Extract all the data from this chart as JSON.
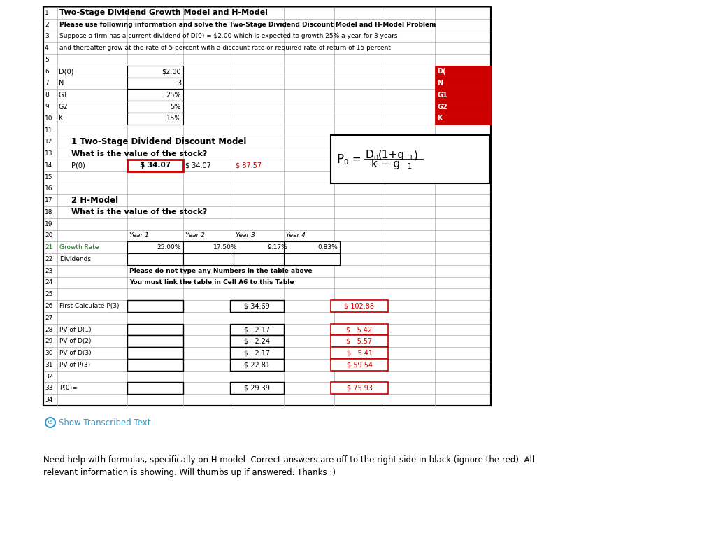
{
  "bg_color": "#ffffff",
  "title_row1": "Two-Stage Dividend Growth Model and H-Model",
  "title_row2": "Please use following information and solve the Two-Stage Dividend Discount Model and H-Model Problem",
  "title_row3": "Suppose a firm has a current dividend of D(0) = $2.00 which is expected to growth 25% a year for 3 years",
  "title_row4": "and thereafter grow at the rate of 5 percent with a discount rate or required rate of return of 15 percent",
  "param_rows": [
    {
      "label": "D(0)",
      "val": "$2.00"
    },
    {
      "label": "N",
      "val": "3"
    },
    {
      "label": "G1",
      "val": "25%"
    },
    {
      "label": "G2",
      "val": "5%"
    },
    {
      "label": "K",
      "val": "15%"
    }
  ],
  "right_labels": [
    "D(",
    "N",
    "G1",
    "G2",
    "K"
  ],
  "section1_title": "1 Two-Stage Dividend Discount Model",
  "section1_q": "What is the value of the stock?",
  "P0_label": "P(0)",
  "P0_val1": "$ 34.07",
  "P0_val2": "$ 34.07",
  "P0_val3": "$ 87.57",
  "section2_title": "2 H-Model",
  "section2_q": "What is the value of the stock?",
  "year_headers": [
    "Year 1",
    "Year 2",
    "Year 3",
    "Year 4"
  ],
  "growth_rates": [
    "25.00%",
    "17.50%",
    "9.17%",
    "0.83%"
  ],
  "first_calc_label": "First Calculate P(3)",
  "first_calc_val1": "$ 34.69",
  "first_calc_val2": "$ 102.88",
  "pv_rows": [
    {
      "label": "PV of D(1)",
      "val1": "$   2.17",
      "val2": "$   5.42"
    },
    {
      "label": "PV of D(2)",
      "val1": "$   2.24",
      "val2": "$   5.57"
    },
    {
      "label": "PV of D(3)",
      "val1": "$   2.17",
      "val2": "$   5.41"
    },
    {
      "label": "PV of P(3)",
      "val1": "$ 22.81",
      "val2": "$ 59.54"
    }
  ],
  "p0_final_label": "P(0)=",
  "p0_final_val1": "$ 29.39",
  "p0_final_val2": "$ 75.93",
  "show_text": "Show Transcribed Text",
  "bottom_text1": "Need help with formulas, specifically on H model. Correct answers are off to the right side in black (ignore the red). All",
  "bottom_text2": "relevant information is showing. Will thumbs up if answered. Thanks :)",
  "red_color": "#cc0000",
  "green_row21": "#007700",
  "grid_color": "#aaaaaa",
  "note_bold_text1": "Please do not type any Numbers in the table above",
  "note_bold_text2": "You must link the table in Cell A6 to this Table"
}
